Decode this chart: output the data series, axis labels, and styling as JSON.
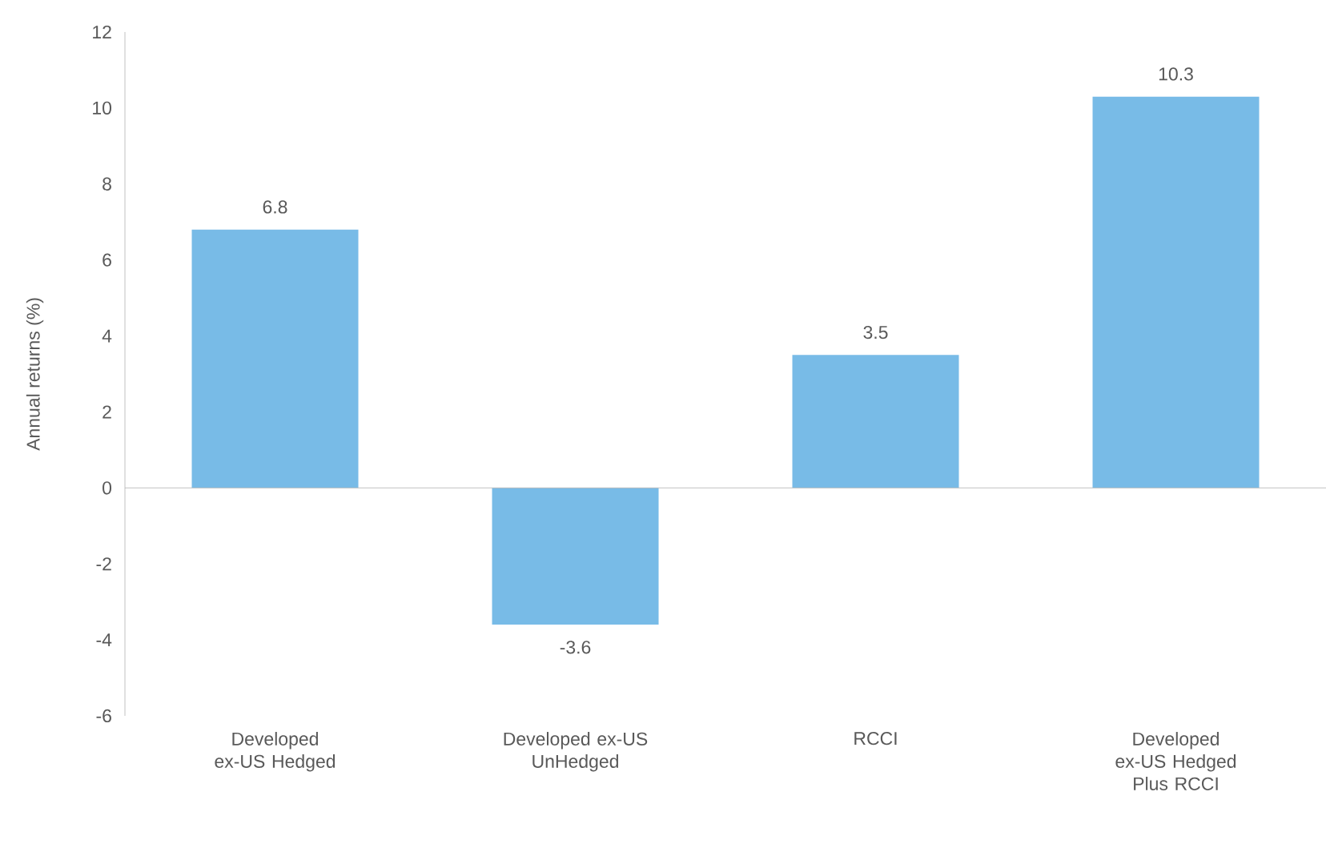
{
  "chart_data": {
    "type": "bar",
    "ylabel": "Annual returns (%)",
    "categories": [
      "Developed ex-US Hedged",
      "Developed ex-US UnHedged",
      "RCCI",
      "Developed ex-US Hedged Plus RCCI"
    ],
    "values": [
      6.8,
      -3.6,
      3.5,
      10.3
    ],
    "color": "#78bbe7",
    "ylim": [
      -6,
      12
    ],
    "yticks": [
      -6,
      -4,
      -2,
      0,
      2,
      4,
      6,
      8,
      10,
      12
    ],
    "data_labels": true
  }
}
